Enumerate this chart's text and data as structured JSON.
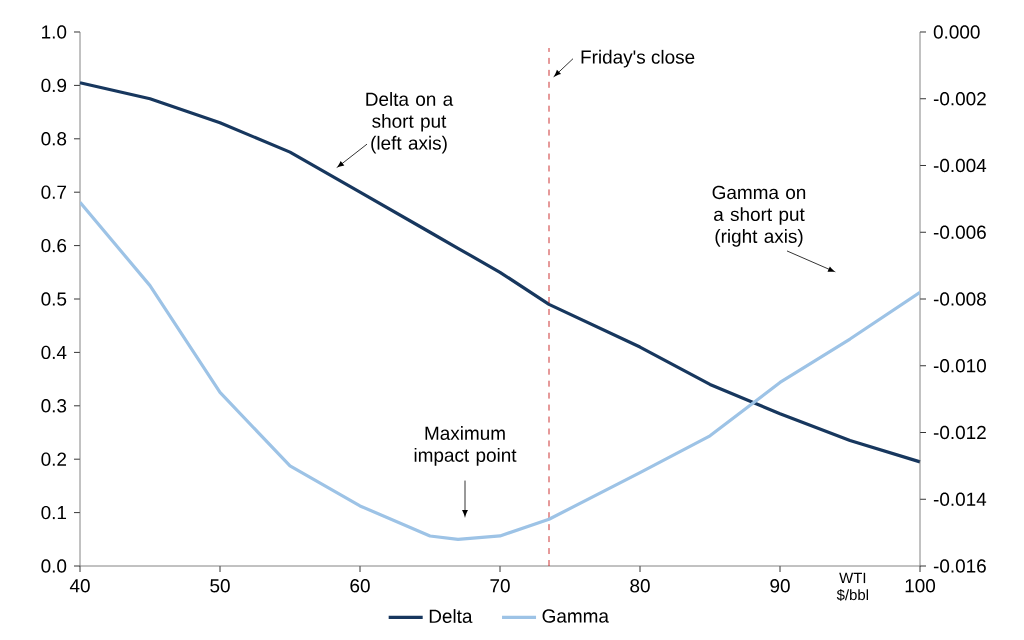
{
  "chart_data": {
    "type": "line",
    "xlabel": "WTI $/bbl",
    "x": [
      40,
      45,
      50,
      55,
      60,
      65,
      67,
      70,
      73.5,
      80,
      85,
      90,
      95,
      100
    ],
    "series": [
      {
        "name": "Delta",
        "color": "#17375e",
        "values": [
          0.905,
          0.875,
          0.83,
          0.775,
          0.7,
          0.625,
          0.595,
          0.55,
          0.49,
          0.41,
          0.34,
          0.285,
          0.235,
          0.195
        ]
      },
      {
        "name": "Gamma",
        "color": "#9dc3e6",
        "axis": "y2",
        "values": [
          -0.0051,
          -0.0076,
          -0.0108,
          -0.013,
          -0.0142,
          -0.0151,
          -0.0152,
          -0.0151,
          -0.0146,
          -0.0132,
          -0.0121,
          -0.0105,
          -0.0092,
          -0.0078
        ]
      }
    ],
    "xlim": [
      40,
      100
    ],
    "xticks": [
      40,
      50,
      60,
      70,
      80,
      90,
      100
    ],
    "ylim": [
      0,
      1
    ],
    "yticks": [
      {
        "value": 0,
        "label": "0.0"
      },
      0.1,
      0.2,
      0.3,
      0.4,
      0.5,
      0.6,
      0.7,
      0.8,
      0.9,
      {
        "value": 1,
        "label": "1.0"
      }
    ],
    "y2lim": [
      -0.016,
      0
    ],
    "y2ticks": [
      -0.016,
      -0.014,
      -0.012,
      {
        "value": -0.01,
        "label": "-0.010"
      },
      -0.008,
      -0.006,
      -0.004,
      -0.002,
      {
        "value": 0,
        "label": "0.000"
      }
    ],
    "ref_lines": [
      {
        "axis": "x",
        "value": 73.5,
        "label": "Friday's close",
        "color": "#c00000",
        "line_style": "dashed"
      }
    ],
    "annotations": [
      "Delta on a short put (left axis)",
      "Maximum impact point",
      "Gamma on a short put (right axis)"
    ],
    "legend": "bottom",
    "grid": false,
    "marker": "none",
    "line_style": "solid"
  }
}
